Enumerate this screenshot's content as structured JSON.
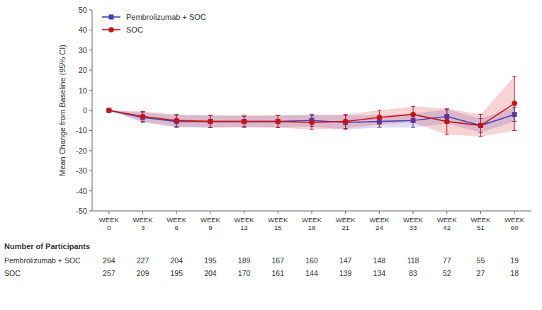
{
  "chart_data": {
    "type": "line",
    "ylabel": "Mean Change from Baseline (95% CI)",
    "categories": [
      "WEEK\n0",
      "WEEK\n3",
      "WEEK\n6",
      "WEEK\n9",
      "WEEK\n12",
      "WEEK\n15",
      "WEEK\n18",
      "WEEK\n21",
      "WEEK\n24",
      "WEEK\n33",
      "WEEK\n42",
      "WEEK\n51",
      "WEEK\n60"
    ],
    "series": [
      {
        "name": "Pembrolizumab + SOC",
        "color": "#4040bb",
        "marker": "square",
        "line_style": "solid",
        "values": [
          0.0,
          -3.5,
          -5.5,
          -5.5,
          -5.5,
          -5.5,
          -5.0,
          -6.0,
          -5.5,
          -5.0,
          -3.0,
          -7.5,
          -2.0
        ],
        "ci_low": [
          0.0,
          -6.0,
          -8.5,
          -8.5,
          -8.0,
          -8.5,
          -8.0,
          -9.5,
          -8.5,
          -8.5,
          -6.5,
          -11.0,
          -5.5
        ],
        "ci_high": [
          0.0,
          -1.0,
          -2.5,
          -2.5,
          -3.0,
          -2.5,
          -2.0,
          -2.5,
          -2.5,
          -1.5,
          0.5,
          -4.0,
          1.5
        ]
      },
      {
        "name": "SOC",
        "color": "#cc1111",
        "marker": "circle",
        "line_style": "solid",
        "values": [
          0.0,
          -3.0,
          -5.0,
          -5.5,
          -5.5,
          -5.5,
          -6.0,
          -5.5,
          -3.5,
          -2.0,
          -5.5,
          -7.5,
          3.5
        ],
        "ci_low": [
          0.0,
          -5.5,
          -8.0,
          -8.5,
          -8.5,
          -8.5,
          -9.5,
          -9.0,
          -7.0,
          -6.0,
          -12.0,
          -13.0,
          -10.0
        ],
        "ci_high": [
          0.0,
          -0.5,
          -2.0,
          -2.5,
          -2.5,
          -2.5,
          -2.5,
          -2.0,
          0.0,
          2.0,
          1.0,
          -2.0,
          17.0
        ]
      }
    ],
    "ylim": [
      -50,
      50
    ],
    "yticks": [
      -50,
      -40,
      -30,
      -20,
      -10,
      0,
      10,
      20,
      30,
      40,
      50
    ],
    "grid": false,
    "legend": "upper left",
    "table": {
      "title": "Number of Participants",
      "rows": [
        {
          "label": "Pembrolizumab + SOC",
          "values": [
            264,
            227,
            204,
            195,
            189,
            167,
            160,
            147,
            148,
            118,
            77,
            55,
            19
          ]
        },
        {
          "label": "SOC",
          "values": [
            257,
            209,
            195,
            204,
            170,
            161,
            144,
            139,
            134,
            83,
            52,
            27,
            18
          ]
        }
      ]
    }
  }
}
